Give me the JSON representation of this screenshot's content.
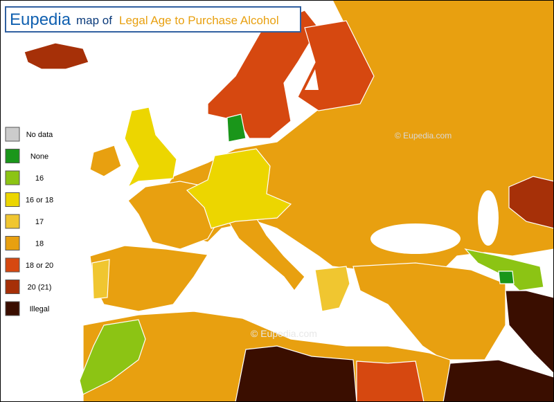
{
  "header": {
    "brand": "Eupedia",
    "connector": "map of",
    "title": "Legal Age to Purchase Alcohol"
  },
  "legend": {
    "items": [
      {
        "label": "No data",
        "color": "#cccccc"
      },
      {
        "label": "None",
        "color": "#1a961a"
      },
      {
        "label": "16",
        "color": "#8cc414"
      },
      {
        "label": "16 or 18",
        "color": "#ecd600"
      },
      {
        "label": "17",
        "color": "#f0c630"
      },
      {
        "label": "18",
        "color": "#e8a010"
      },
      {
        "label": "18 or 20",
        "color": "#d64810"
      },
      {
        "label": "20 (21)",
        "color": "#a63008"
      },
      {
        "label": "Illegal",
        "color": "#3a0e00"
      }
    ]
  },
  "watermarks": [
    "© Eupedia.com",
    "© Eupedia.com"
  ]
}
